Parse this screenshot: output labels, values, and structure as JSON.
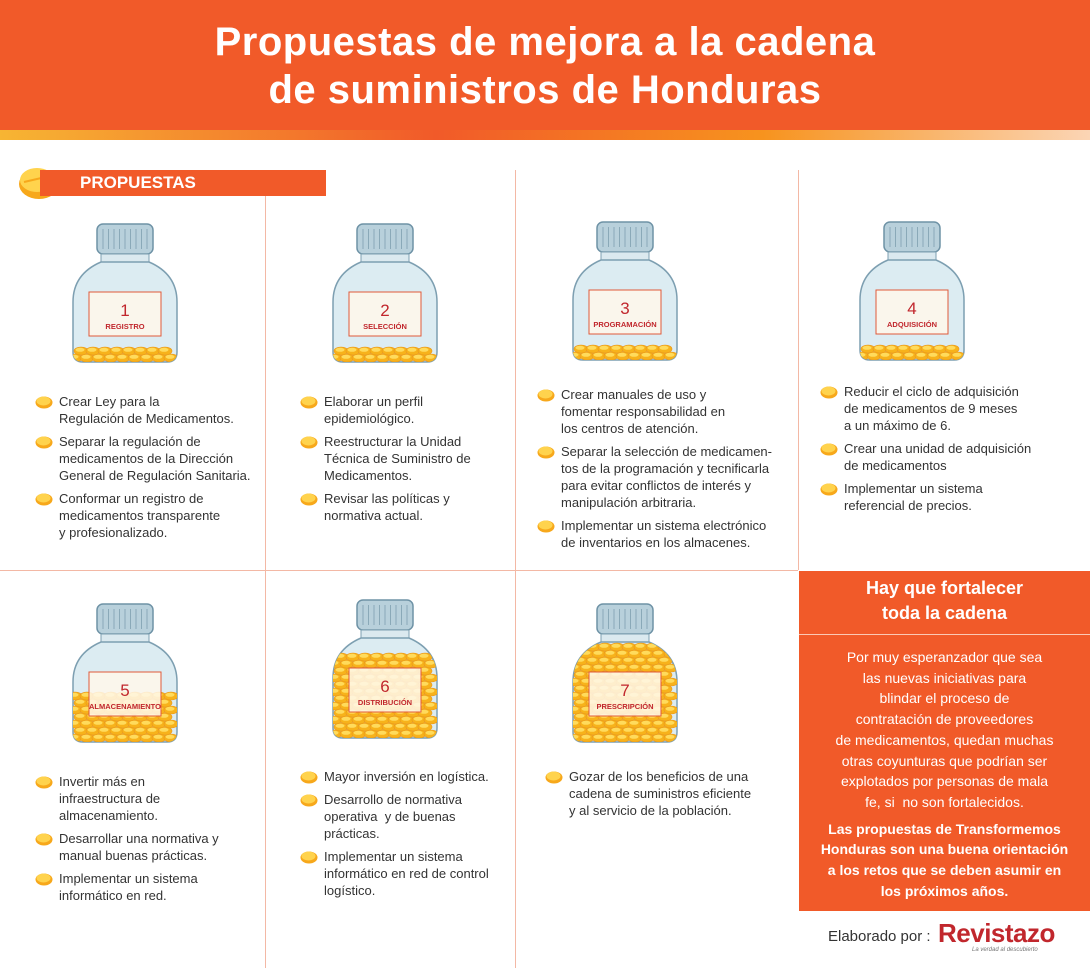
{
  "header": {
    "title_lines": [
      "Propuestas de mejora a la cadena",
      "de suministros de Honduras"
    ]
  },
  "section_label": "PROPUESTAS",
  "cards": [
    {
      "number": 1,
      "name": "REGISTRO",
      "bullets": [
        [
          "Crear Ley para la",
          "Regulación de Medicamentos."
        ],
        [
          "Separar la regulación de",
          "medicamentos de la Dirección",
          "General de Regulación Sanitaria."
        ],
        [
          "Conformar un registro de",
          "medicamentos transparente",
          "y profesionalizado."
        ]
      ]
    },
    {
      "number": 2,
      "name": "SELECCIÓN",
      "bullets": [
        [
          "Elaborar un perfil",
          "epidemiológico."
        ],
        [
          "Reestructurar la Unidad",
          "Técnica de Suministro de",
          "Medicamentos."
        ],
        [
          "Revisar las políticas y",
          "normativa actual."
        ]
      ]
    },
    {
      "number": 3,
      "name": "PROGRAMACIÓN",
      "bullets": [
        [
          "Crear manuales de uso y",
          "fomentar responsabilidad en",
          "los centros de atención."
        ],
        [
          "Separar la selección de medicamen-",
          "tos de la programación y tecnificarla",
          "para evitar conflictos de interés y",
          "manipulación arbitraria."
        ],
        [
          "Implementar un sistema electrónico",
          "de inventarios en los almacenes."
        ]
      ]
    },
    {
      "number": 4,
      "name": "ADQUISICIÓN",
      "bullets": [
        [
          "Reducir el ciclo de adquisición",
          "de medicamentos de 9 meses",
          "a un máximo de 6."
        ],
        [
          "Crear una unidad de adquisición",
          "de medicamentos"
        ],
        [
          "Implementar un sistema",
          "referencial de precios."
        ]
      ]
    },
    {
      "number": 5,
      "name": "ALMACENAMIENTO",
      "bullets": [
        [
          "Invertir más en",
          "infraestructura de",
          "almacenamiento."
        ],
        [
          "Desarrollar una normativa y",
          "manual buenas prácticas."
        ],
        [
          "Implementar un sistema",
          "informático en red."
        ]
      ]
    },
    {
      "number": 6,
      "name": "DISTRIBUCIÓN",
      "bullets": [
        [
          "Mayor inversión en logística."
        ],
        [
          "Desarrollo de normativa",
          "operativa  y de buenas",
          "prácticas."
        ],
        [
          "Implementar un sistema",
          "informático en red de control",
          "logístico."
        ]
      ]
    },
    {
      "number": 7,
      "name": "PRESCRIPCIÓN",
      "bullets": [
        [
          "Gozar de los beneficios de una",
          "cadena de suministros eficiente",
          "y al servicio de la población."
        ]
      ]
    }
  ],
  "sidebar": {
    "heading_lines": [
      "Hay que fortalecer",
      "toda la cadena"
    ],
    "paragraph_lines": [
      "Por muy esperanzador que sea",
      "las nuevas iniciativas para",
      "blindar el proceso de",
      "contratación de proveedores",
      "de medicamentos, quedan muchas",
      "otras coyunturas que podrían ser",
      "explotados por personas de mala",
      "fe, si  no son fortalecidos."
    ],
    "conclusion_lines": [
      "Las propuestas de Transformemos",
      "Honduras son una buena orientación",
      "a los retos que se deben asumir en",
      "los próximos años."
    ],
    "credit": "Elaborado por :",
    "brand": "Revistazo",
    "tagline": "La verdad al descubierto"
  }
}
